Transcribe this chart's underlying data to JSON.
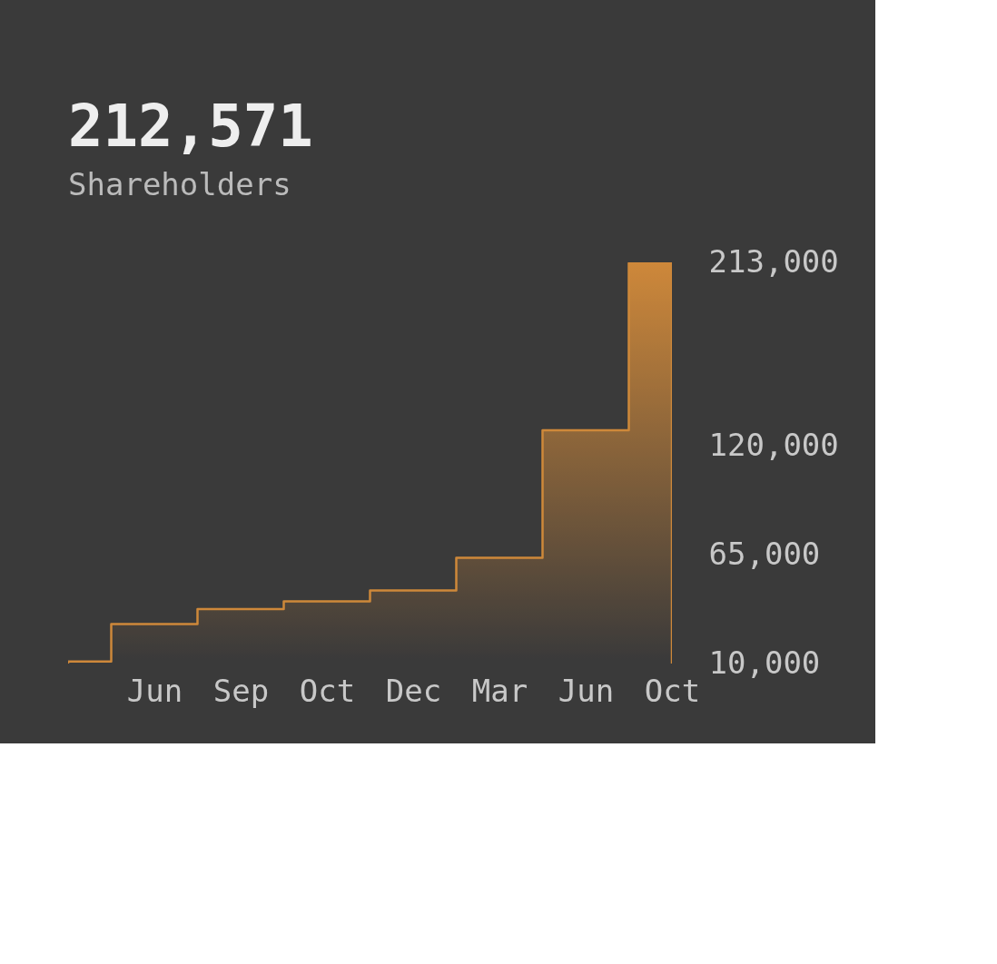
{
  "chart_data": {
    "type": "area",
    "title": "212,571",
    "subtitle": "Shareholders",
    "categories": [
      null,
      "Jun",
      "Sep",
      "Oct",
      "Dec",
      "Mar",
      "Jun",
      "Oct"
    ],
    "series": [
      {
        "color": "#e8963a",
        "values": [
          11000,
          30000,
          37500,
          41500,
          47000,
          63500,
          128000,
          212571
        ]
      }
    ],
    "ylim": [
      10000,
      213000
    ],
    "yticks": [
      {
        "value": 10000,
        "label": "10,000"
      },
      {
        "value": 65000,
        "label": "65,000"
      },
      {
        "value": 120000,
        "label": "120,000"
      },
      {
        "value": 213000,
        "label": "213,000"
      }
    ],
    "grid": false
  }
}
